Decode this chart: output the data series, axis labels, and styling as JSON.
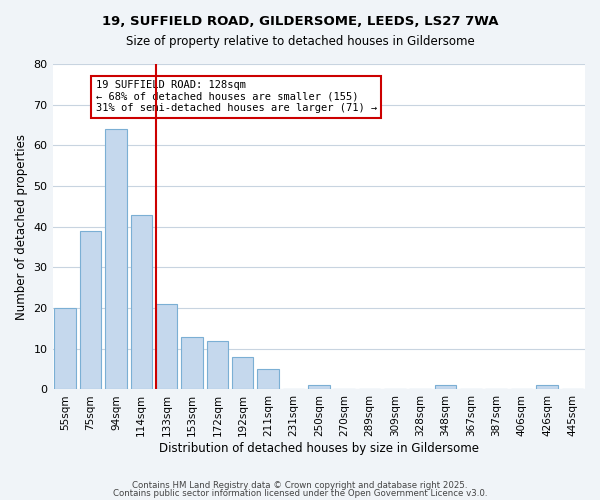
{
  "title_line1": "19, SUFFIELD ROAD, GILDERSOME, LEEDS, LS27 7WA",
  "title_line2": "Size of property relative to detached houses in Gildersome",
  "xlabel": "Distribution of detached houses by size in Gildersome",
  "ylabel": "Number of detached properties",
  "bin_labels": [
    "55sqm",
    "75sqm",
    "94sqm",
    "114sqm",
    "133sqm",
    "153sqm",
    "172sqm",
    "192sqm",
    "211sqm",
    "231sqm",
    "250sqm",
    "270sqm",
    "289sqm",
    "309sqm",
    "328sqm",
    "348sqm",
    "367sqm",
    "387sqm",
    "406sqm",
    "426sqm",
    "445sqm"
  ],
  "bar_heights": [
    20,
    39,
    64,
    43,
    21,
    13,
    12,
    8,
    5,
    0,
    1,
    0,
    0,
    0,
    0,
    1,
    0,
    0,
    0,
    1,
    0
  ],
  "bar_color": "#c5d8ed",
  "bar_edge_color": "#7bafd4",
  "vline_x": 4,
  "vline_color": "#cc0000",
  "annotation_text": "19 SUFFIELD ROAD: 128sqm\n← 68% of detached houses are smaller (155)\n31% of semi-detached houses are larger (71) →",
  "annotation_box_color": "#ffffff",
  "annotation_box_edge_color": "#cc0000",
  "ylim": [
    0,
    80
  ],
  "yticks": [
    0,
    10,
    20,
    30,
    40,
    50,
    60,
    70,
    80
  ],
  "footer_line1": "Contains HM Land Registry data © Crown copyright and database right 2025.",
  "footer_line2": "Contains public sector information licensed under the Open Government Licence v3.0.",
  "background_color": "#f0f4f8",
  "plot_bg_color": "#ffffff",
  "grid_color": "#c8d4e0"
}
